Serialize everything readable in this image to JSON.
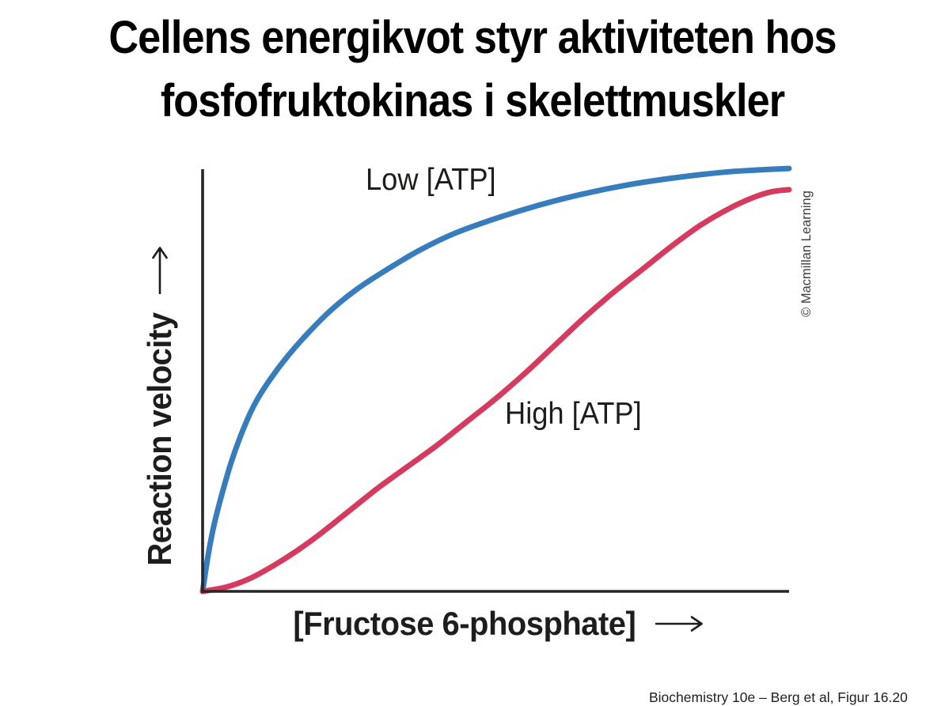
{
  "slide": {
    "title_line1": "Cellens energikvot styr aktiviteten hos",
    "title_line2": "fosfofruktokinas i skelettmuskler",
    "credit": "© Macmillan Learning",
    "citation": "Biochemistry 10e – Berg et al, Figur 16.20"
  },
  "chart_data": {
    "type": "line",
    "xlabel": "[Fructose 6-phosphate]",
    "ylabel": "Reaction velocity",
    "axis_arrows": true,
    "tick_labels": "none (qualitative axes)",
    "grid": false,
    "legend_position": "inline labels next to curves",
    "axis_color": "#262626",
    "text_color": "#1d1d1b",
    "xlim": [
      0,
      100
    ],
    "ylim": [
      0,
      100
    ],
    "series": [
      {
        "name": "Low [ATP]",
        "color": "#377cbd",
        "shape": "hyperbolic (Michaelis-Menten-like)",
        "points": [
          [
            0,
            0
          ],
          [
            1,
            9
          ],
          [
            2,
            16
          ],
          [
            3.5,
            24
          ],
          [
            5,
            31
          ],
          [
            7,
            38.5
          ],
          [
            9,
            44.5
          ],
          [
            11.5,
            50
          ],
          [
            14.5,
            55.5
          ],
          [
            18,
            61
          ],
          [
            22,
            66.5
          ],
          [
            26.5,
            71.5
          ],
          [
            31.5,
            76
          ],
          [
            37,
            80.5
          ],
          [
            43,
            84.5
          ],
          [
            50,
            88
          ],
          [
            57,
            91
          ],
          [
            64,
            93.5
          ],
          [
            72,
            95.8
          ],
          [
            80,
            97.5
          ],
          [
            88,
            98.8
          ],
          [
            94,
            99.4
          ],
          [
            100,
            99.8
          ]
        ]
      },
      {
        "name": "High [ATP]",
        "color": "#d63a5e",
        "shape": "sigmoidal (cooperative)",
        "points": [
          [
            0,
            0
          ],
          [
            4,
            1
          ],
          [
            8,
            3
          ],
          [
            12,
            6
          ],
          [
            16,
            9.5
          ],
          [
            20,
            13.5
          ],
          [
            25,
            19
          ],
          [
            30,
            24.5
          ],
          [
            35,
            29.5
          ],
          [
            40,
            34.5
          ],
          [
            45,
            40
          ],
          [
            50,
            45.5
          ],
          [
            55,
            51.5
          ],
          [
            60,
            58
          ],
          [
            65,
            64.5
          ],
          [
            70,
            70.5
          ],
          [
            75,
            76
          ],
          [
            80,
            81.5
          ],
          [
            85,
            86.5
          ],
          [
            90,
            90.5
          ],
          [
            94,
            93
          ],
          [
            97,
            94.3
          ],
          [
            100,
            94.8
          ]
        ]
      }
    ]
  }
}
